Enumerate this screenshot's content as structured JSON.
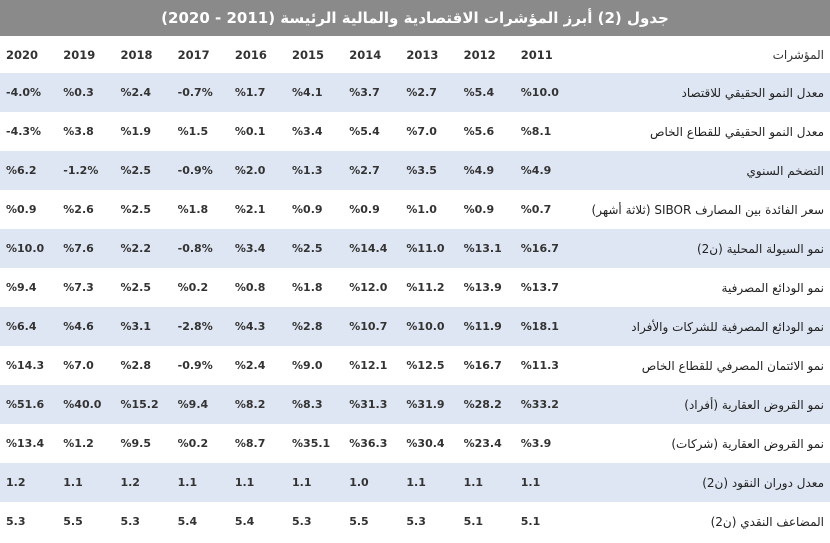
{
  "title": "جدول (2) أبرز المؤشرات الاقتصادية والمالية الرئيسة (2011 - 2020)",
  "header": {
    "label": "المؤشرات",
    "years": [
      "2011",
      "2012",
      "2013",
      "2014",
      "2015",
      "2016",
      "2017",
      "2018",
      "2019",
      "2020"
    ]
  },
  "rows": [
    {
      "label": "معدل النمو الحقيقي للاقتصاد",
      "values": [
        "%10.0",
        "%5.4",
        "%2.7",
        "%3.7",
        "%4.1",
        "%1.7",
        "-0.7%",
        "%2.4",
        "%0.3",
        "-4.0%"
      ]
    },
    {
      "label": "معدل النمو الحقيقي للقطاع الخاص",
      "values": [
        "%8.1",
        "%5.6",
        "%7.0",
        "%5.4",
        "%3.4",
        "%0.1",
        "%1.5",
        "%1.9",
        "%3.8",
        "-4.3%"
      ]
    },
    {
      "label": "التضخم السنوي",
      "values": [
        "%4.9",
        "%4.9",
        "%3.5",
        "%2.7",
        "%1.3",
        "%2.0",
        "-0.9%",
        "%2.5",
        "-1.2%",
        "%6.2"
      ]
    },
    {
      "label": "سعر الفائدة بين المصارف SIBOR (ثلاثة أشهر)",
      "values": [
        "%0.7",
        "%0.9",
        "%1.0",
        "%0.9",
        "%0.9",
        "%2.1",
        "%1.8",
        "%2.5",
        "%2.6",
        "%0.9"
      ]
    },
    {
      "label": "نمو السيولة المحلية (ن2)",
      "values": [
        "%16.7",
        "%13.1",
        "%11.0",
        "%14.4",
        "%2.5",
        "%3.4",
        "-0.8%",
        "%2.2",
        "%7.6",
        "%10.0"
      ]
    },
    {
      "label": "نمو الودائع المصرفية",
      "values": [
        "%13.7",
        "%13.9",
        "%11.2",
        "%12.0",
        "%1.8",
        "%0.8",
        "%0.2",
        "%2.5",
        "%7.3",
        "%9.4"
      ]
    },
    {
      "label": "نمو الودائع المصرفية للشركات والأفراد",
      "values": [
        "%18.1",
        "%11.9",
        "%10.0",
        "%10.7",
        "%2.8",
        "%4.3",
        "-2.8%",
        "%3.1",
        "%4.6",
        "%6.4"
      ]
    },
    {
      "label": "نمو الائتمان المصرفي للقطاع الخاص",
      "values": [
        "%11.3",
        "%16.7",
        "%12.5",
        "%12.1",
        "%9.0",
        "%2.4",
        "-0.9%",
        "%2.8",
        "%7.0",
        "%14.3"
      ]
    },
    {
      "label": "نمو القروض العقارية (أفراد)",
      "values": [
        "%33.2",
        "%28.2",
        "%31.9",
        "%31.3",
        "%8.3",
        "%8.2",
        "%9.4",
        "%15.2",
        "%40.0",
        "%51.6"
      ]
    },
    {
      "label": "نمو القروض العقارية (شركات)",
      "values": [
        "%3.9",
        "%23.4",
        "%30.4",
        "%36.3",
        "%35.1",
        "%8.7",
        "%0.2",
        "%9.5",
        "%1.2",
        "%13.4"
      ]
    },
    {
      "label": "معدل دوران النقود (ن2)",
      "values": [
        "1.1",
        "1.1",
        "1.1",
        "1.0",
        "1.1",
        "1.1",
        "1.1",
        "1.2",
        "1.1",
        "1.2"
      ]
    },
    {
      "label": "المضاعف النقدي (ن2)",
      "values": [
        "5.1",
        "5.1",
        "5.3",
        "5.5",
        "5.3",
        "5.4",
        "5.4",
        "5.3",
        "5.5",
        "5.3"
      ]
    }
  ]
}
